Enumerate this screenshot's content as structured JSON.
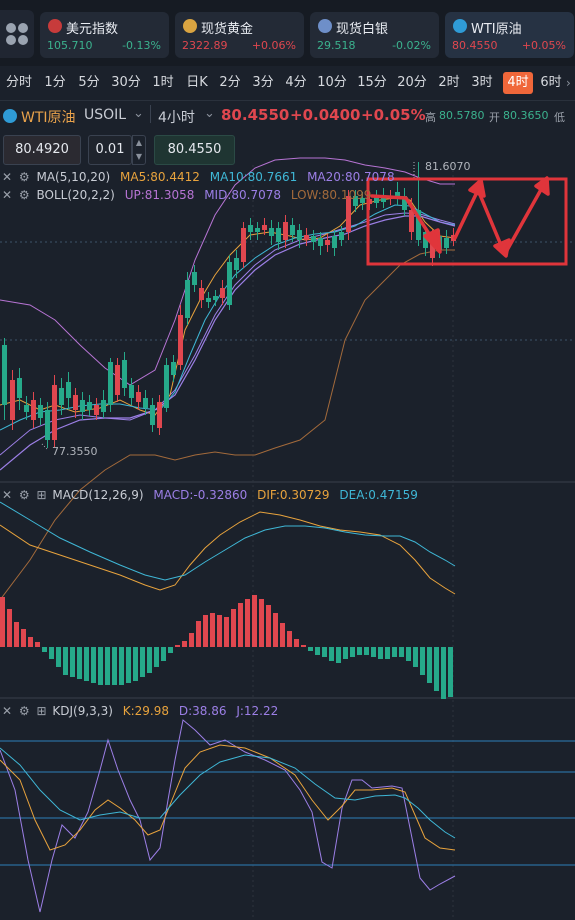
{
  "tickers": [
    {
      "name": "美元指数",
      "price": "105.710",
      "change": "-0.13%",
      "dir": "down",
      "flag_color": "#c73b3b"
    },
    {
      "name": "现货黄金",
      "price": "2322.89",
      "change": "+0.06%",
      "dir": "up",
      "flag_color": "#d9a441"
    },
    {
      "name": "现货白银",
      "price": "29.518",
      "change": "-0.02%",
      "dir": "down",
      "flag_color": "#6e8fc9"
    },
    {
      "name": "WTI原油",
      "price": "80.4550",
      "change": "+0.05%",
      "dir": "up",
      "flag_color": "#2f9bd6"
    }
  ],
  "periods": [
    "分时",
    "1分",
    "5分",
    "30分",
    "1时",
    "日K",
    "2分",
    "3分",
    "4分",
    "10分",
    "15分",
    "20分",
    "2时",
    "3时",
    "4时",
    "6时"
  ],
  "selected_period": "4时",
  "symbol": {
    "name": "WTI原油",
    "code": "USOIL",
    "interval": "4小时",
    "price": "80.4550",
    "change": "+0.0400",
    "change_pct": "+0.05%",
    "high_label": "高",
    "high": "80.5780",
    "open_label": "开",
    "open": "80.3650",
    "low_label": "低"
  },
  "order": {
    "sell_price": "80.4920",
    "lot": "0.01",
    "buy_price": "80.4550"
  },
  "ma": {
    "label": "MA(5,10,20)",
    "ma5": "MA5:80.4412",
    "ma10": "MA10:80.7661",
    "ma20": "MA20:80.7078"
  },
  "boll": {
    "label": "BOLL(20,2,2)",
    "up": "UP:81.3058",
    "mid": "MID:80.7078",
    "low": "LOW:80.1099"
  },
  "chart_annotations": {
    "high": "81.6070",
    "low": "77.3550"
  },
  "macd": {
    "label": "MACD(12,26,9)",
    "macd": "MACD:-0.32860",
    "dif": "DIF:0.30729",
    "dea": "DEA:0.47159"
  },
  "kdj": {
    "label": "KDJ(9,3,3)",
    "k": "K:29.98",
    "d": "D:38.86",
    "j": "J:12.22"
  },
  "colors": {
    "up": "#e0474f",
    "down": "#26a98a",
    "accent": "#f0673a",
    "ma5": "#e8a33d",
    "ma10": "#3fb7d6",
    "ma20": "#9c7fe6"
  }
}
